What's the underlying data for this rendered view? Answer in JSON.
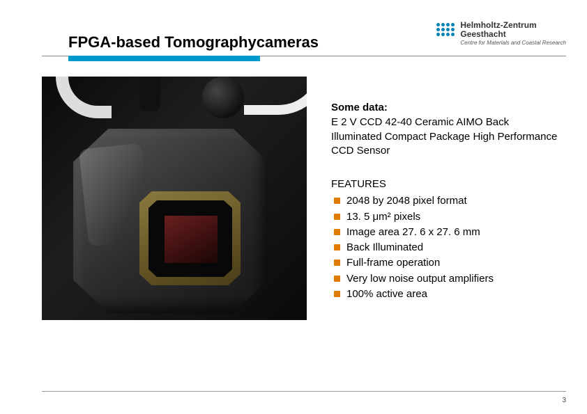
{
  "title": "FPGA-based Tomographycameras",
  "logo": {
    "line1": "Helmholtz-Zentrum",
    "line2": "Geesthacht",
    "subtitle": "Centre for Materials and Coastal Research"
  },
  "accent_color": "#0099cc",
  "bullet_color": "#e07b00",
  "some_data": {
    "heading": "Some data:",
    "description": "E 2 V CCD 42-40 Ceramic AIMO Back Illuminated Compact Package High Performance CCD Sensor"
  },
  "features": {
    "heading": "FEATURES",
    "items": [
      "2048 by 2048 pixel format",
      "13. 5 μm²  pixels",
      "Image area 27. 6 x 27. 6 mm",
      "Back Illuminated",
      "Full-frame operation",
      "Very low noise output amplifiers",
      "100% active area"
    ]
  },
  "page_number": "3"
}
